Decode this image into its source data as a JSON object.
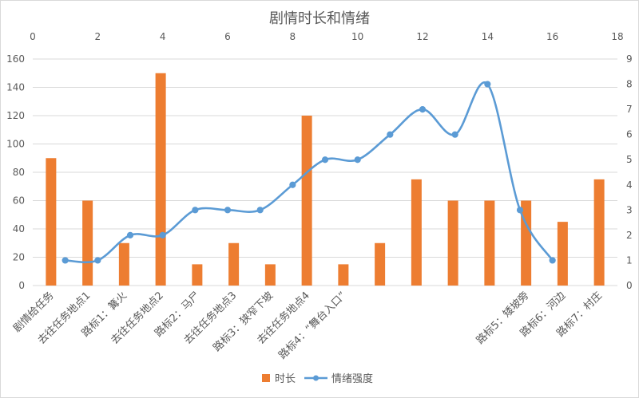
{
  "chart_data": {
    "type": "bar",
    "title": "剧情时长和情绪",
    "categories": [
      "剧情给任务",
      "去往任务地点1",
      "路标1：篝火",
      "去往任务地点2",
      "路标2：马尸",
      "去往任务地点3",
      "路标3：狭窄下坡",
      "去往任务地点4",
      "路标4：“舞台入口”",
      "",
      "",
      "",
      "",
      "路标5：矮坡旁",
      "路标6：河边",
      "路标7：村庄"
    ],
    "series": [
      {
        "name": "时长",
        "type": "bar",
        "axis": "left",
        "values": [
          90,
          60,
          30,
          150,
          15,
          30,
          15,
          120,
          15,
          30,
          75,
          60,
          60,
          60,
          45,
          75
        ]
      },
      {
        "name": "情绪强度",
        "type": "line",
        "axis": "right",
        "x_axis": "top",
        "smooth": true,
        "markers": true,
        "x": [
          1,
          2,
          3,
          4,
          5,
          6,
          7,
          8,
          9,
          10,
          11,
          12,
          13,
          14,
          15,
          16
        ],
        "values": [
          1,
          1,
          2,
          2,
          3,
          3,
          3,
          4,
          5,
          5,
          6,
          7,
          6,
          8,
          3,
          1
        ]
      }
    ],
    "y_left": {
      "range": [
        0,
        160
      ],
      "ticks": [
        0,
        20,
        40,
        60,
        80,
        100,
        120,
        140,
        160
      ]
    },
    "y_right": {
      "range": [
        0,
        9
      ],
      "ticks": [
        0,
        1,
        2,
        3,
        4,
        5,
        6,
        7,
        8,
        9
      ]
    },
    "x_top": {
      "range": [
        0,
        18
      ],
      "ticks": [
        0,
        2,
        4,
        6,
        8,
        10,
        12,
        14,
        16,
        18
      ]
    },
    "xlabel": "",
    "ylabel": "",
    "grid": true,
    "legend": "bottom",
    "colors": {
      "bar": "#ED7D31",
      "line": "#5B9BD5",
      "grid": "#D9D9D9",
      "text": "#595959",
      "border": "#D9D9D9"
    }
  }
}
